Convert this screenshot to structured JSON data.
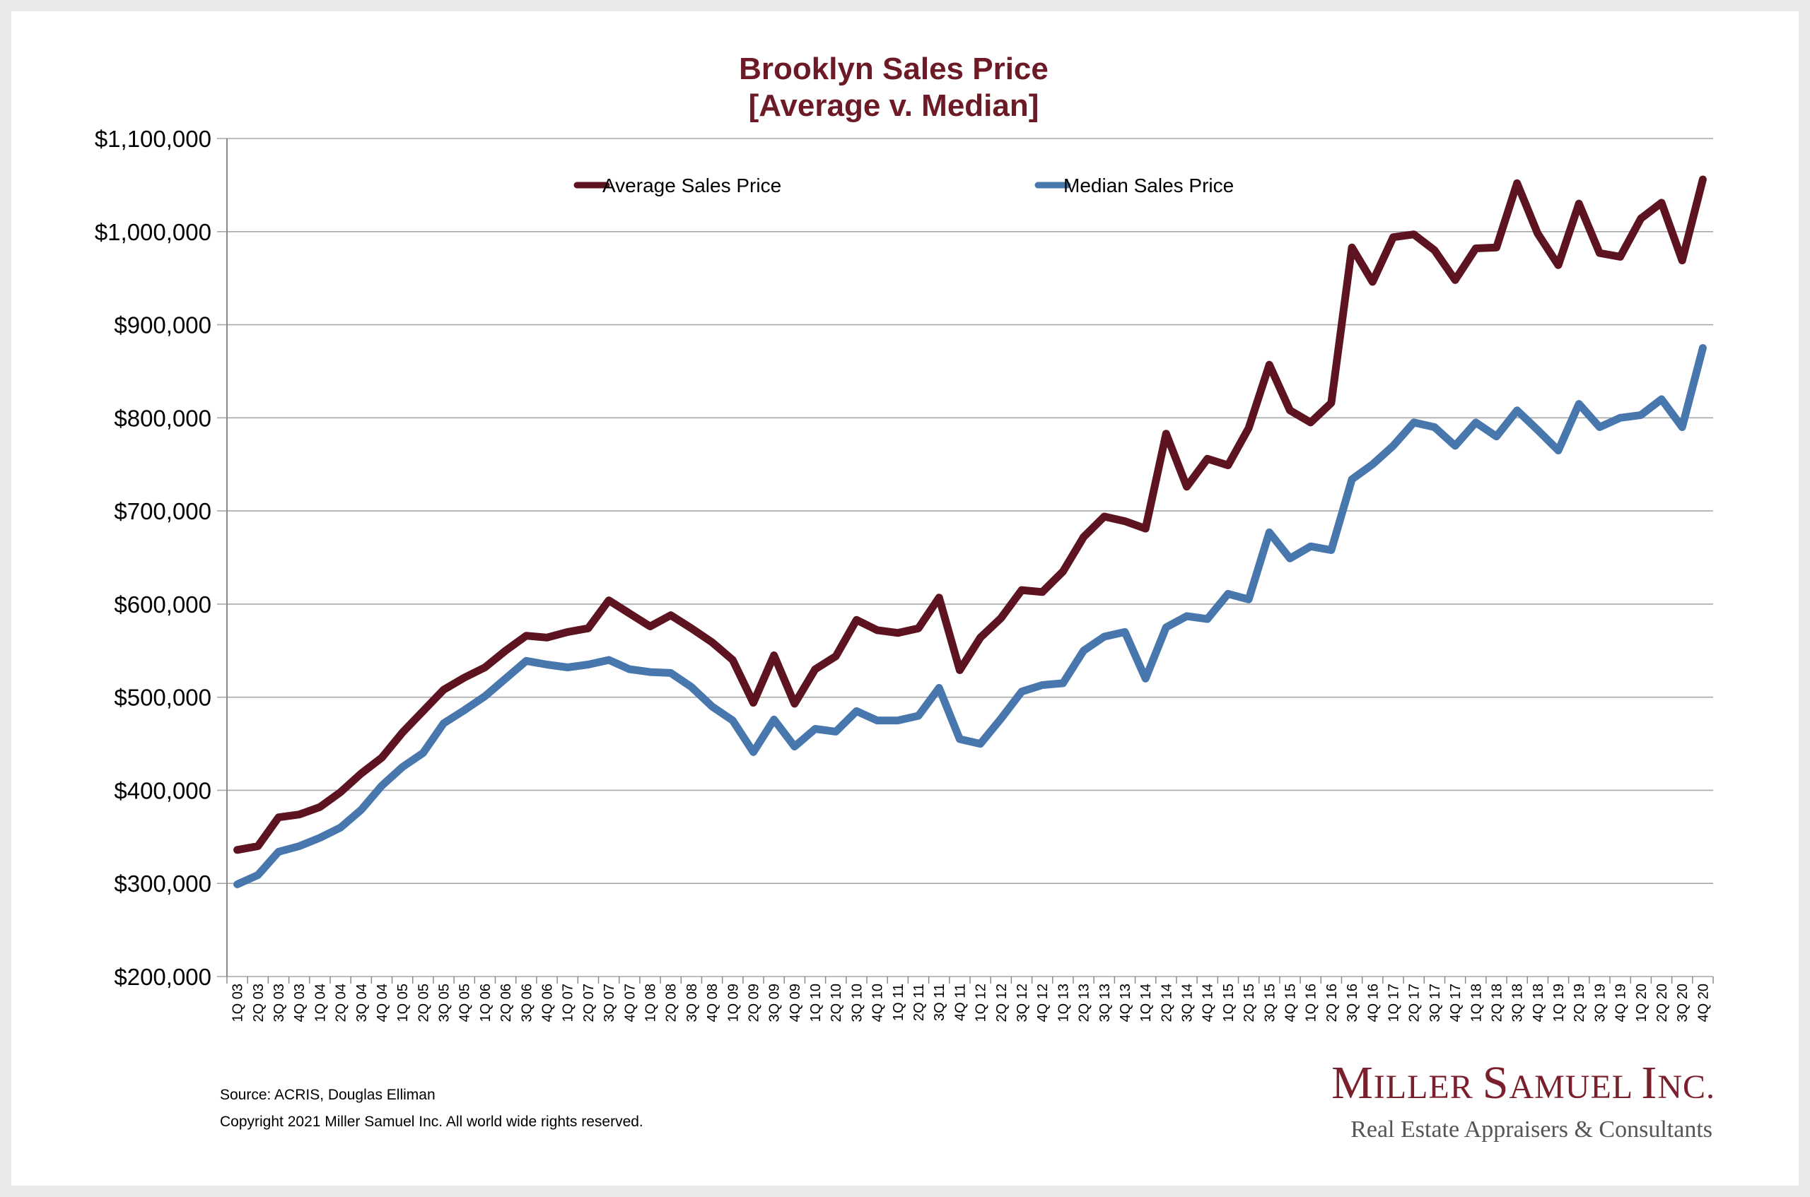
{
  "chart_data": {
    "type": "line",
    "title": "Brooklyn Sales Price",
    "subtitle": "[Average v. Median]",
    "xlabel": "",
    "ylabel": "",
    "ylim": [
      200000,
      1100000
    ],
    "yticks": [
      200000,
      300000,
      400000,
      500000,
      600000,
      700000,
      800000,
      900000,
      1000000,
      1100000
    ],
    "ytick_labels": [
      "$200,000",
      "$300,000",
      "$400,000",
      "$500,000",
      "$600,000",
      "$700,000",
      "$800,000",
      "$900,000",
      "$1,000,000",
      "$1,100,000"
    ],
    "grid": true,
    "legend_position": "top",
    "categories": [
      "1Q 03",
      "2Q 03",
      "3Q 03",
      "4Q 03",
      "1Q 04",
      "2Q 04",
      "3Q 04",
      "4Q 04",
      "1Q 05",
      "2Q 05",
      "3Q 05",
      "4Q 05",
      "1Q 06",
      "2Q 06",
      "3Q 06",
      "4Q 06",
      "1Q 07",
      "2Q 07",
      "3Q 07",
      "4Q 07",
      "1Q 08",
      "2Q 08",
      "3Q 08",
      "4Q 08",
      "1Q 09",
      "2Q 09",
      "3Q 09",
      "4Q 09",
      "1Q 10",
      "2Q 10",
      "3Q 10",
      "4Q 10",
      "1Q 11",
      "2Q 11",
      "3Q 11",
      "4Q 11",
      "1Q 12",
      "2Q 12",
      "3Q 12",
      "4Q 12",
      "1Q 13",
      "2Q 13",
      "3Q 13",
      "4Q 13",
      "1Q 14",
      "2Q 14",
      "3Q 14",
      "4Q 14",
      "1Q 15",
      "2Q 15",
      "3Q 15",
      "4Q 15",
      "1Q 16",
      "2Q 16",
      "3Q 16",
      "4Q 16",
      "1Q 17",
      "2Q 17",
      "3Q 17",
      "4Q 17",
      "1Q 18",
      "2Q 18",
      "3Q 18",
      "4Q 18",
      "1Q 19",
      "2Q 19",
      "3Q 19",
      "4Q 19",
      "1Q 20",
      "2Q 20",
      "3Q 20",
      "4Q 20"
    ],
    "series": [
      {
        "name": "Average Sales Price",
        "color": "#5e1320",
        "values": [
          336000,
          340000,
          371000,
          374000,
          382000,
          398000,
          418000,
          435000,
          462000,
          485000,
          508000,
          521000,
          532000,
          550000,
          566000,
          564000,
          570000,
          574000,
          604000,
          590000,
          576000,
          588000,
          574000,
          559000,
          540000,
          494000,
          545000,
          493000,
          530000,
          544000,
          583000,
          572000,
          569000,
          574000,
          607000,
          529000,
          564000,
          585000,
          615000,
          613000,
          635000,
          672000,
          694000,
          689000,
          681000,
          783000,
          726000,
          756000,
          749000,
          789000,
          857000,
          808000,
          795000,
          816000,
          983000,
          946000,
          994000,
          997000,
          980000,
          948000,
          982000,
          983000,
          1052000,
          998000,
          964000,
          1030000,
          977000,
          973000,
          1014000,
          1031000,
          969000,
          1056000
        ]
      },
      {
        "name": "Median Sales Price",
        "color": "#4777ad",
        "values": [
          299000,
          309000,
          334000,
          340000,
          349000,
          360000,
          379000,
          405000,
          425000,
          440000,
          472000,
          486000,
          501000,
          520000,
          539000,
          535000,
          532000,
          535000,
          540000,
          530000,
          527000,
          526000,
          511000,
          490000,
          475000,
          441000,
          476000,
          447000,
          466000,
          463000,
          485000,
          475000,
          475000,
          480000,
          510000,
          455000,
          450000,
          477000,
          506000,
          513000,
          515000,
          550000,
          565000,
          570000,
          520000,
          575000,
          587000,
          584000,
          611000,
          605000,
          677000,
          649000,
          662000,
          658000,
          734000,
          750000,
          770000,
          795000,
          790000,
          770000,
          795000,
          780000,
          808000,
          787000,
          765000,
          815000,
          790000,
          800000,
          803000,
          820000,
          790000,
          875000
        ]
      }
    ]
  },
  "footer": {
    "source": "Source: ACRIS, Douglas Elliman",
    "copyright": "Copyright 2021 Miller Samuel Inc.  All world wide rights reserved."
  },
  "brand": {
    "name": "Miller Samuel Inc.",
    "tagline": "Real Estate Appraisers & Consultants",
    "color": "#7a1f2c"
  }
}
